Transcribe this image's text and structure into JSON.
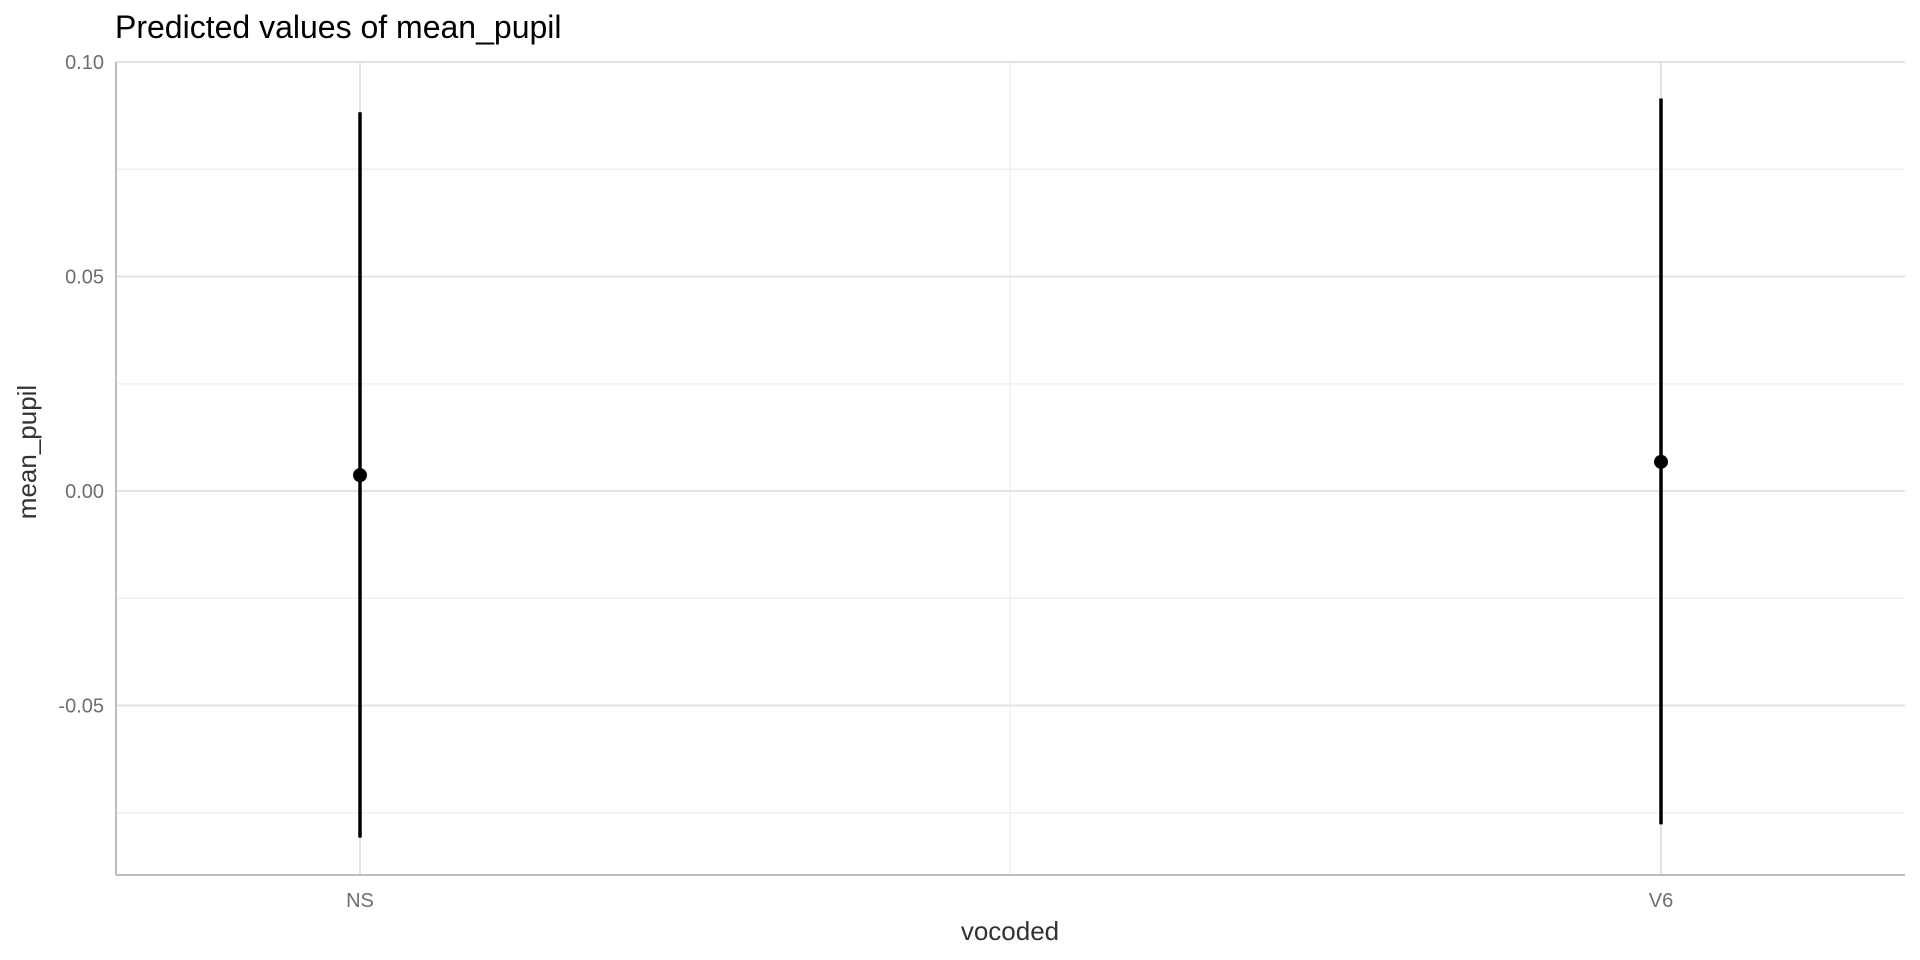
{
  "chart_data": {
    "type": "scatter",
    "title": "Predicted values of mean_pupil",
    "xlabel": "vocoded",
    "ylabel": "mean_pupil",
    "categories": [
      "NS",
      "V6"
    ],
    "series": [
      {
        "values": [
          0.0037,
          0.0068
        ],
        "ci_low": [
          -0.0808,
          -0.0777
        ],
        "ci_high": [
          0.0883,
          0.0915
        ],
        "color": "#000000"
      }
    ],
    "ylim": [
      -0.0895,
      0.1
    ],
    "yticks": [
      -0.05,
      0,
      0.05,
      0.1
    ],
    "ytick_labels": [
      "-0.05",
      "0.00",
      "0.05",
      "0.10"
    ],
    "grid": true,
    "legend": "none"
  }
}
